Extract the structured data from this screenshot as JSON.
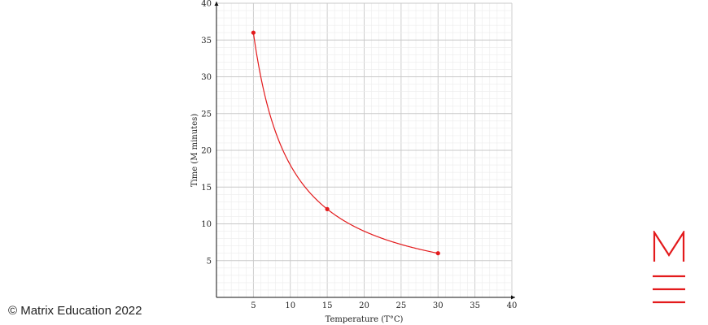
{
  "chart_data": {
    "type": "line",
    "xlabel": "Temperature (T°C)",
    "ylabel": "Time (M minutes)",
    "xlim": [
      0,
      40
    ],
    "ylim": [
      0,
      40
    ],
    "x_ticks": [
      5,
      10,
      15,
      20,
      25,
      30,
      35,
      40
    ],
    "y_ticks": [
      5,
      10,
      15,
      20,
      25,
      30,
      35,
      40
    ],
    "grid": true,
    "series": [
      {
        "color": "#e31a1c",
        "points": [
          {
            "x": 5,
            "y": 36
          },
          {
            "x": 15,
            "y": 12
          },
          {
            "x": 30,
            "y": 6
          }
        ],
        "curve": "M = 180 / T, for 5 ≤ T ≤ 30"
      }
    ]
  },
  "footer": {
    "copyright": "© Matrix Education 2022"
  },
  "brand": {
    "logo_icon": "matrix-m-logo",
    "accent_color": "#e31a1c"
  }
}
